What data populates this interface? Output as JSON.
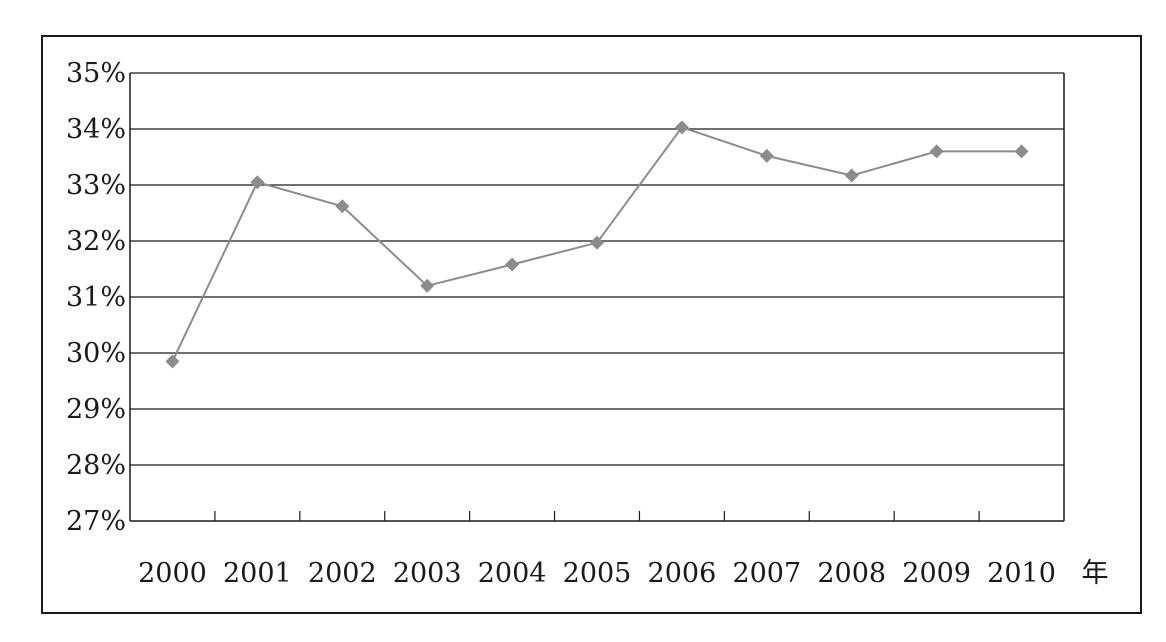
{
  "chart_data": {
    "type": "line",
    "x_unit_label": "年",
    "categories": [
      "2000",
      "2001",
      "2002",
      "2003",
      "2004",
      "2005",
      "2006",
      "2007",
      "2008",
      "2009",
      "2010"
    ],
    "series": [
      {
        "values": [
          29.85,
          33.05,
          32.62,
          31.2,
          31.58,
          31.97,
          34.03,
          33.52,
          33.17,
          33.6,
          33.6
        ]
      }
    ],
    "y_ticks": [
      "27%",
      "28%",
      "29%",
      "30%",
      "31%",
      "32%",
      "33%",
      "34%",
      "35%"
    ],
    "ylim": [
      27,
      35
    ],
    "grid": "horizontal",
    "line_color": "#8c8c8c",
    "marker": "diamond",
    "marker_color": "#8c8c8c"
  }
}
